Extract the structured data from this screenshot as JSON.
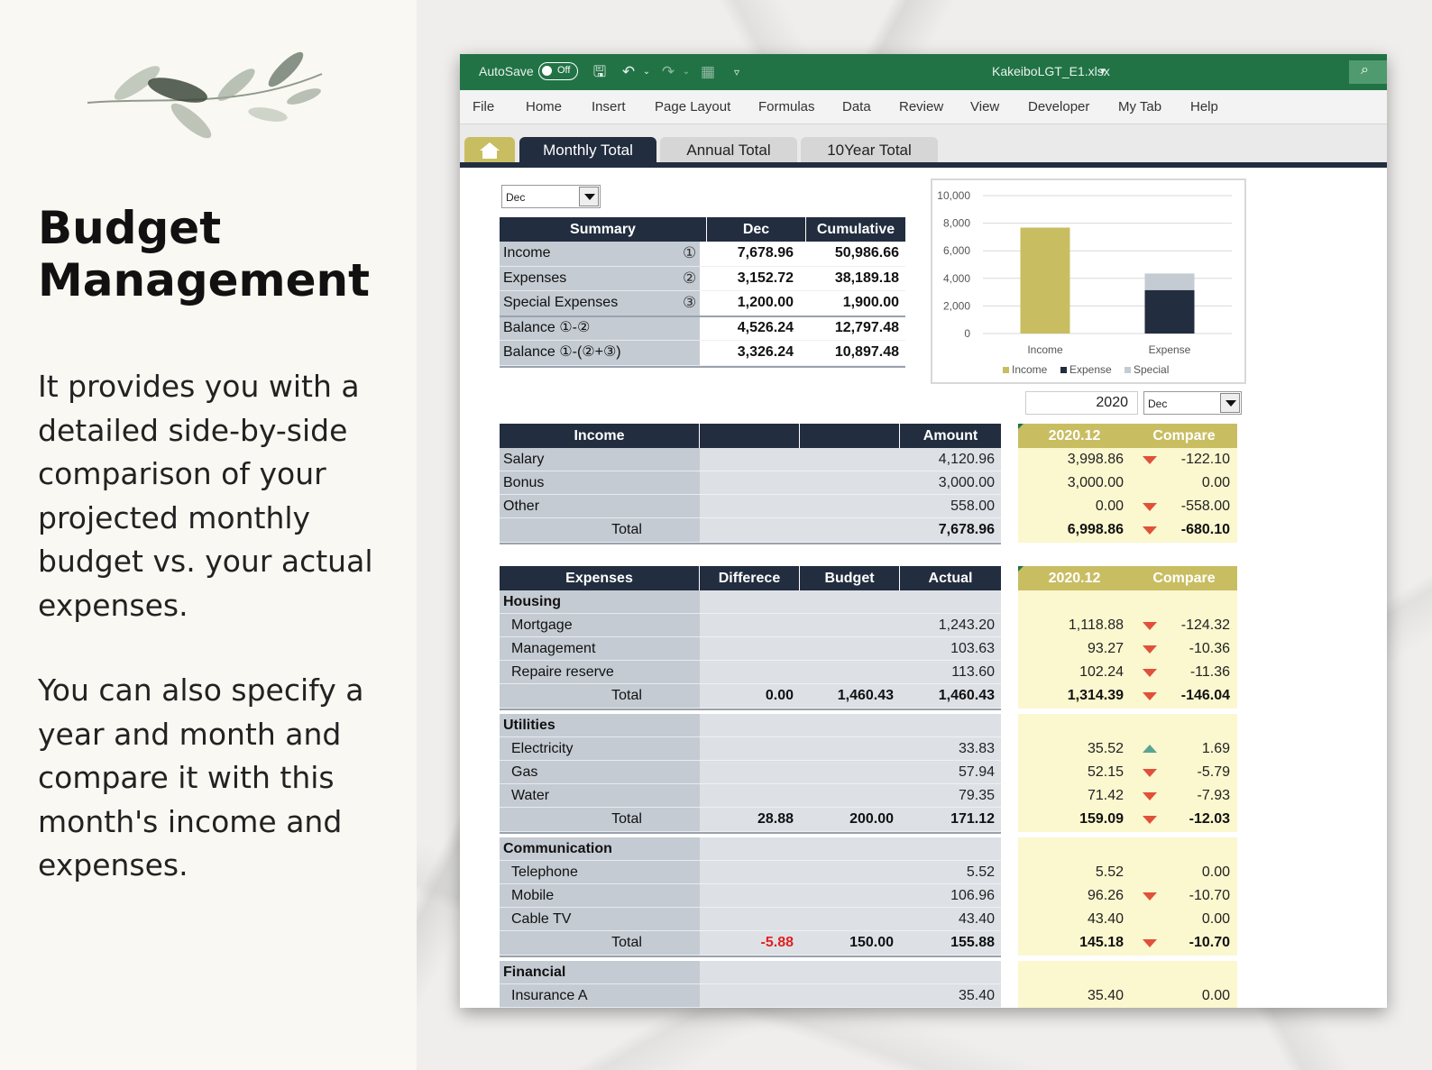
{
  "promo": {
    "title_line1": "Budget",
    "title_line2": "Management",
    "paragraph1": "It provides you with a detailed side-by-side comparison of your projected monthly budget vs. your actual expenses.",
    "paragraph2": "You can also specify a year and month and compare it with this month's income and expenses."
  },
  "window": {
    "autosave_label": "AutoSave",
    "autosave_state": "Off",
    "filename": "KakeiboLGT_E1.xlsx",
    "accent_color": "#217346"
  },
  "menu": [
    "File",
    "Home",
    "Insert",
    "Page Layout",
    "Formulas",
    "Data",
    "Review",
    "View",
    "Developer",
    "My Tab",
    "Help"
  ],
  "tabs": {
    "monthly": "Monthly Total",
    "annual": "Annual Total",
    "tenyear": "10Year Total"
  },
  "month_select": "Dec",
  "compare": {
    "year": "2020",
    "month": "Dec"
  },
  "summary": {
    "headers": [
      "Summary",
      "Dec",
      "Cumulative"
    ],
    "rows": [
      {
        "label": "Income",
        "mark": "①",
        "dec": "7,678.96",
        "cum": "50,986.66"
      },
      {
        "label": "Expenses",
        "mark": "②",
        "dec": "3,152.72",
        "cum": "38,189.18"
      },
      {
        "label": "Special Expenses",
        "mark": "③",
        "dec": "1,200.00",
        "cum": "1,900.00"
      },
      {
        "label": "Balance ①-②",
        "mark": "",
        "dec": "4,526.24",
        "cum": "12,797.48"
      },
      {
        "label": "Balance ①-(②+③)",
        "mark": "",
        "dec": "3,326.24",
        "cum": "10,897.48"
      }
    ]
  },
  "chart_data": {
    "type": "bar",
    "categories": [
      "Income",
      "Expense"
    ],
    "series": [
      {
        "name": "Income",
        "values": [
          7678.96,
          0
        ],
        "color": "#c9bd62"
      },
      {
        "name": "Expense",
        "values": [
          0,
          3152.72
        ],
        "color": "#222d3f"
      },
      {
        "name": "Special",
        "values": [
          0,
          1200.0
        ],
        "color": "#c5cbd3"
      }
    ],
    "stacked": true,
    "yticks": [
      "10,000",
      "8,000",
      "6,000",
      "4,000",
      "2,000",
      "0"
    ],
    "ylim": [
      0,
      10000
    ],
    "legend": "bottom",
    "grid": true
  },
  "income": {
    "headers": [
      "Income",
      "",
      "",
      "Amount"
    ],
    "compare_headers": [
      "2020.12",
      "Compare"
    ],
    "rows": [
      {
        "label": "Salary",
        "amount": "4,120.96",
        "cmp": "3,998.86",
        "diff": "-122.10",
        "trend": "down"
      },
      {
        "label": "Bonus",
        "amount": "3,000.00",
        "cmp": "3,000.00",
        "diff": "0.00",
        "trend": ""
      },
      {
        "label": "Other",
        "amount": "558.00",
        "cmp": "0.00",
        "diff": "-558.00",
        "trend": "down"
      }
    ],
    "total": {
      "label": "Total",
      "amount": "7,678.96",
      "cmp": "6,998.86",
      "diff": "-680.10",
      "trend": "down"
    }
  },
  "expenses": {
    "headers": [
      "Expenses",
      "Differece",
      "Budget",
      "Actual"
    ],
    "compare_headers": [
      "2020.12",
      "Compare"
    ],
    "groups": [
      {
        "name": "Housing",
        "items": [
          {
            "label": "Mortgage",
            "actual": "1,243.20",
            "cmp": "1,118.88",
            "diff": "-124.32",
            "trend": "down"
          },
          {
            "label": "Management",
            "actual": "103.63",
            "cmp": "93.27",
            "diff": "-10.36",
            "trend": "down"
          },
          {
            "label": "Repaire reserve",
            "actual": "113.60",
            "cmp": "102.24",
            "diff": "-11.36",
            "trend": "down"
          }
        ],
        "total": {
          "label": "Total",
          "diff_val": "0.00",
          "budget": "1,460.43",
          "actual": "1,460.43",
          "cmp": "1,314.39",
          "diff": "-146.04",
          "trend": "down",
          "neg": false
        }
      },
      {
        "name": "Utilities",
        "items": [
          {
            "label": "Electricity",
            "actual": "33.83",
            "cmp": "35.52",
            "diff": "1.69",
            "trend": "up"
          },
          {
            "label": "Gas",
            "actual": "57.94",
            "cmp": "52.15",
            "diff": "-5.79",
            "trend": "down"
          },
          {
            "label": "Water",
            "actual": "79.35",
            "cmp": "71.42",
            "diff": "-7.93",
            "trend": "down"
          }
        ],
        "total": {
          "label": "Total",
          "diff_val": "28.88",
          "budget": "200.00",
          "actual": "171.12",
          "cmp": "159.09",
          "diff": "-12.03",
          "trend": "down",
          "neg": false
        }
      },
      {
        "name": "Communication",
        "items": [
          {
            "label": "Telephone",
            "actual": "5.52",
            "cmp": "5.52",
            "diff": "0.00",
            "trend": ""
          },
          {
            "label": "Mobile",
            "actual": "106.96",
            "cmp": "96.26",
            "diff": "-10.70",
            "trend": "down"
          },
          {
            "label": "Cable TV",
            "actual": "43.40",
            "cmp": "43.40",
            "diff": "0.00",
            "trend": ""
          }
        ],
        "total": {
          "label": "Total",
          "diff_val": "-5.88",
          "budget": "150.00",
          "actual": "155.88",
          "cmp": "145.18",
          "diff": "-10.70",
          "trend": "down",
          "neg": true
        }
      },
      {
        "name": "Financial",
        "items": [
          {
            "label": "Insurance A",
            "actual": "35.40",
            "cmp": "35.40",
            "diff": "0.00",
            "trend": ""
          }
        ]
      }
    ]
  }
}
